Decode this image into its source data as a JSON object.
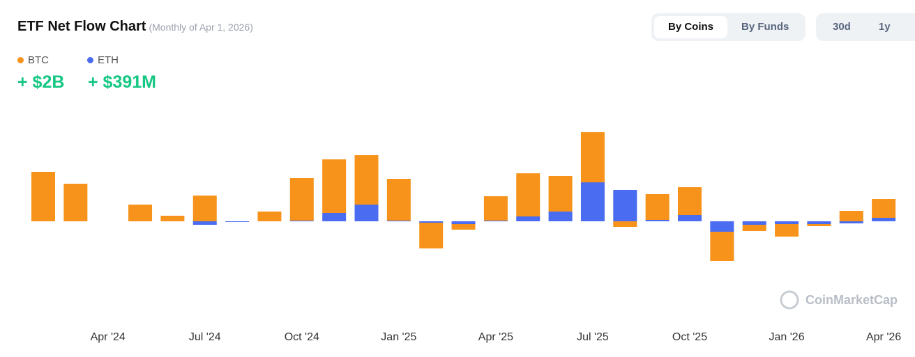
{
  "chart_data": {
    "type": "stacked_bar",
    "title": "ETF Net Flow Chart",
    "subtitle": "(Monthly of Apr 1, 2026)",
    "categories": [
      null,
      null,
      "Apr '24",
      null,
      null,
      "Jul '24",
      null,
      null,
      "Oct '24",
      null,
      null,
      "Jan '25",
      null,
      null,
      "Apr '25",
      null,
      null,
      "Jul '25",
      null,
      null,
      "Oct '25",
      null,
      null,
      "Jan '26",
      null,
      null,
      "Apr '26"
    ],
    "series": [
      {
        "name": "BTC",
        "color": "#f7931a",
        "total": "+ $2B",
        "values": [
          7.1,
          5.4,
          0,
          2.4,
          0.8,
          3.7,
          0,
          1.4,
          6.1,
          7.7,
          7.1,
          6.0,
          -3.7,
          -0.8,
          3.5,
          6.2,
          5.1,
          7.2,
          -0.8,
          3.7,
          4.0,
          -4.2,
          -0.9,
          -1.8,
          -0.3,
          1.5,
          2.7
        ]
      },
      {
        "name": "ETH",
        "color": "#4a6cf0",
        "total": "+ $391M",
        "values": [
          0,
          0,
          0,
          0,
          0,
          -0.5,
          -0.1,
          0,
          0.1,
          1.2,
          2.4,
          0.1,
          -0.2,
          -0.4,
          0.1,
          0.7,
          1.4,
          5.6,
          4.5,
          0.2,
          0.9,
          -1.5,
          -0.5,
          -0.4,
          -0.4,
          -0.3,
          0.5
        ]
      }
    ],
    "ylim": [
      -6.7,
      14.3
    ],
    "watermark": "CoinMarketCap",
    "view_buttons": [
      "By Coins",
      "By Funds"
    ],
    "range_buttons": [
      "30d",
      "1y"
    ]
  }
}
